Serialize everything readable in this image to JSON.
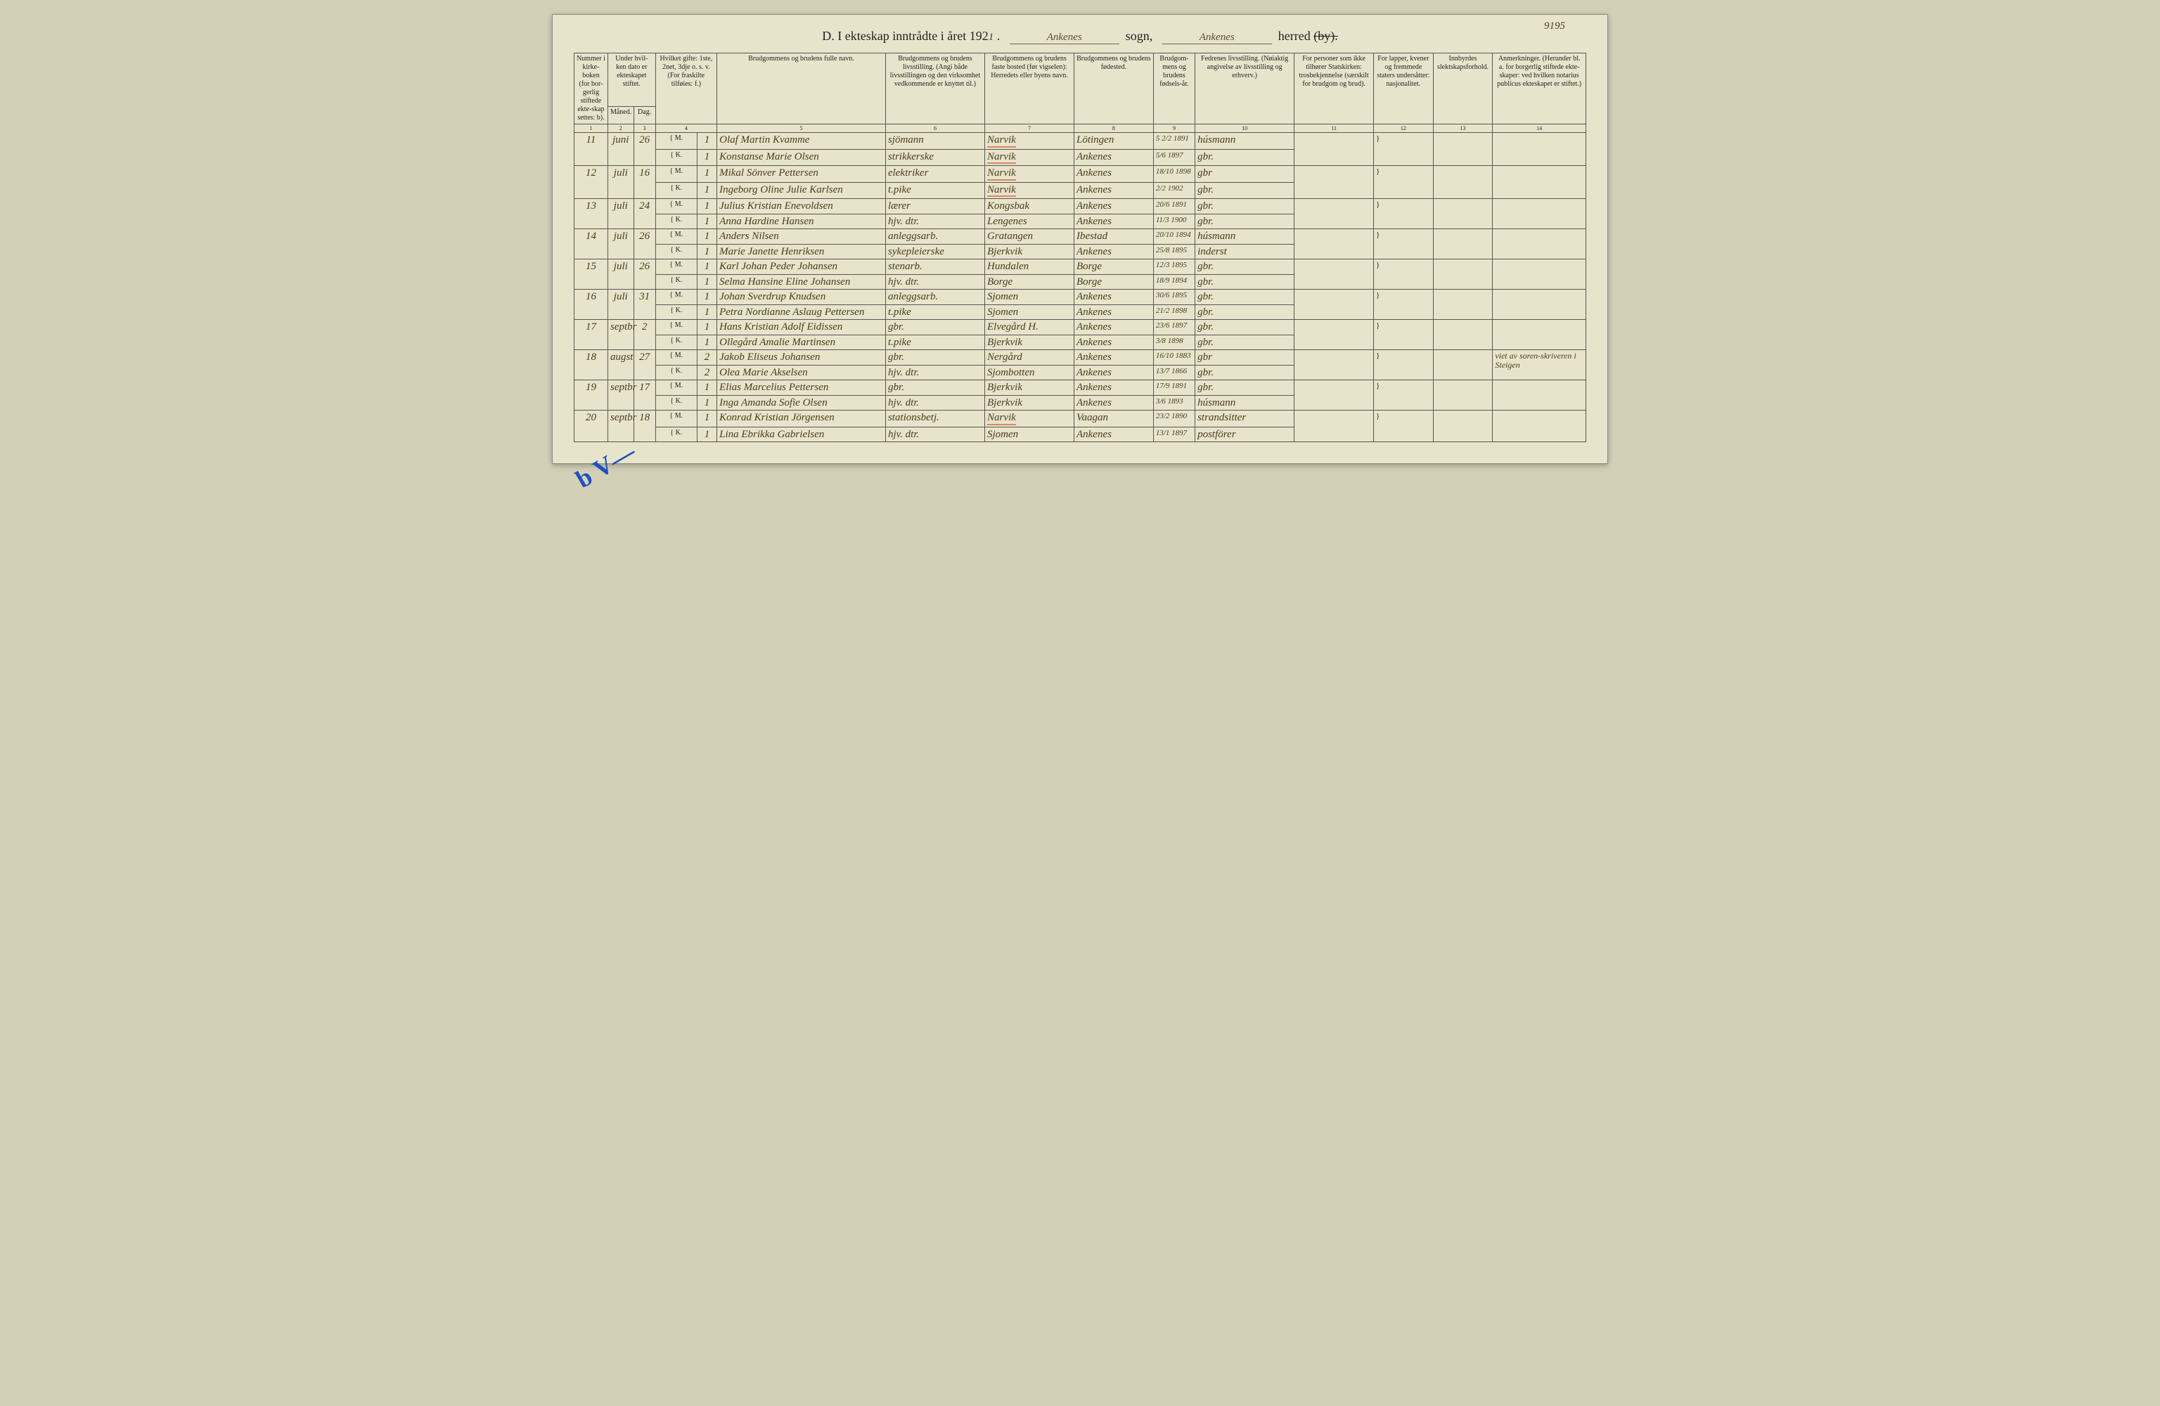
{
  "corner_note": "9195",
  "header": {
    "prefix": "D.   I ekteskap inntrådte i året 192",
    "year_digit": "1",
    "sogn_label": "sogn,",
    "sogn_fill": "Ankenes",
    "herred_label": "herred",
    "herred_fill": "Ankenes",
    "struck": "(by)."
  },
  "columns": [
    {
      "n": "1",
      "label": "Nummer i kirke-boken (for bor-gerlig stiftede ekte-skap settes: b)."
    },
    {
      "n": "2",
      "label": "Under hvil-ken dato er ekteskapet stiftet.",
      "sub": "Måned."
    },
    {
      "n": "3",
      "label": "",
      "sub": "Dag."
    },
    {
      "n": "4",
      "label": "Hvilket gifte: 1ste, 2net, 3dje o. s. v. (For fraskilte tilføies: f.)"
    },
    {
      "n": "5",
      "label": "Brudgommens og brudens fulle navn."
    },
    {
      "n": "6",
      "label": "Brudgommens og brudens livsstilling. (Angi både livsstillingen og den virksomhet vedkommende er knyttet til.)"
    },
    {
      "n": "7",
      "label": "Brudgommens og brudens faste bosted (før vigselen): Herredets eller byens navn."
    },
    {
      "n": "8",
      "label": "Brudgommens og brudens fødested."
    },
    {
      "n": "9",
      "label": "Brudgom-mens og brudens fødsels-år."
    },
    {
      "n": "10",
      "label": "Fedrenes livsstilling. (Nøiaktig angivelse av livsstilling og erhverv.)"
    },
    {
      "n": "11",
      "label": "For personer som ikke tilhører Statskirken: trosbekjennelse (særskilt for brudgom og brud)."
    },
    {
      "n": "12",
      "label": "For lapper, kvener og fremmede staters undersåtter: nasjonalitet."
    },
    {
      "n": "13",
      "label": "Innbyrdes slektskapsforhold."
    },
    {
      "n": "14",
      "label": "Anmerkninger. (Herunder bl. a. for borgerlig stiftede ekte-skaper: ved hvilken notarius publicus ekteskapet er stiftet.)"
    }
  ],
  "mk": {
    "M": "M.",
    "K": "K."
  },
  "entries": [
    {
      "num": "11",
      "month": "juni",
      "day": "26",
      "g": {
        "gifte": "1",
        "name": "Olaf Martin Kvamme",
        "occ": "sjömann",
        "res": "Narvik",
        "res_red": true,
        "birthpl": "Lötingen",
        "birth": "5 2/2 1891",
        "father": "húsmann"
      },
      "b": {
        "gifte": "1",
        "name": "Konstanse Marie Olsen",
        "occ": "strikkerske",
        "res": "Narvik",
        "res_red": true,
        "birthpl": "Ankenes",
        "birth": "5/6 1897",
        "father": "gbr."
      }
    },
    {
      "num": "12",
      "month": "juli",
      "day": "16",
      "g": {
        "gifte": "1",
        "name": "Mikal Sönver Pettersen",
        "occ": "elektriker",
        "res": "Narvik",
        "res_red": true,
        "birthpl": "Ankenes",
        "birth": "18/10 1898",
        "father": "gbr"
      },
      "b": {
        "gifte": "1",
        "name": "Ingeborg Oline Julie Karlsen",
        "occ": "t.pike",
        "res": "Narvik",
        "res_red": true,
        "birthpl": "Ankenes",
        "birth": "2/2 1902",
        "father": "gbr."
      }
    },
    {
      "num": "13",
      "month": "juli",
      "day": "24",
      "g": {
        "gifte": "1",
        "name": "Julius Kristian Enevoldsen",
        "occ": "lærer",
        "res": "Kongsbak",
        "birthpl": "Ankenes",
        "birth": "20/6 1891",
        "father": "gbr."
      },
      "b": {
        "gifte": "1",
        "name": "Anna Hardine Hansen",
        "occ": "hjv. dtr.",
        "res": "Lengenes",
        "birthpl": "Ankenes",
        "birth": "11/3 1900",
        "father": "gbr."
      }
    },
    {
      "num": "14",
      "month": "juli",
      "day": "26",
      "g": {
        "gifte": "1",
        "name": "Anders Nilsen",
        "occ": "anleggsarb.",
        "res": "Gratangen",
        "birthpl": "Ibestad",
        "birth": "20/10 1894",
        "father": "húsmann"
      },
      "b": {
        "gifte": "1",
        "name": "Marie Janette Henriksen",
        "occ": "sykepleierske",
        "res": "Bjerkvik",
        "birthpl": "Ankenes",
        "birth": "25/8 1895",
        "father": "inderst"
      }
    },
    {
      "num": "15",
      "month": "juli",
      "day": "26",
      "g": {
        "gifte": "1",
        "name": "Karl Johan Peder Johansen",
        "occ": "stenarb.",
        "res": "Hundalen",
        "birthpl": "Borge",
        "birth": "12/3 1895",
        "father": "gbr."
      },
      "b": {
        "gifte": "1",
        "name": "Selma Hansine Eline Johansen",
        "occ": "hjv. dtr.",
        "res": "Borge",
        "birthpl": "Borge",
        "birth": "18/9 1894",
        "father": "gbr."
      }
    },
    {
      "num": "16",
      "month": "juli",
      "day": "31",
      "g": {
        "gifte": "1",
        "name": "Johan Sverdrup Knudsen",
        "occ": "anleggsarb.",
        "res": "Sjomen",
        "birthpl": "Ankenes",
        "birth": "30/6 1895",
        "father": "gbr."
      },
      "b": {
        "gifte": "1",
        "name": "Petra Nordianne Aslaug Pettersen",
        "occ": "t.pike",
        "res": "Sjomen",
        "birthpl": "Ankenes",
        "birth": "21/2 1898",
        "father": "gbr."
      }
    },
    {
      "num": "17",
      "month": "septbr",
      "day": "2",
      "g": {
        "gifte": "1",
        "name": "Hans Kristian Adolf Eidissen",
        "occ": "gbr.",
        "res": "Elvegård H.",
        "birthpl": "Ankenes",
        "birth": "23/6 1897",
        "father": "gbr."
      },
      "b": {
        "gifte": "1",
        "name": "Ollegård Amalie Martinsen",
        "occ": "t.pike",
        "res": "Bjerkvik",
        "birthpl": "Ankenes",
        "birth": "3/8 1898",
        "father": "gbr."
      }
    },
    {
      "num": "18",
      "month": "augst",
      "day": "27",
      "g": {
        "gifte": "2",
        "name": "Jakob Eliseus Johansen",
        "occ": "gbr.",
        "res": "Nergård",
        "birthpl": "Ankenes",
        "birth": "16/10 1883",
        "father": "gbr"
      },
      "b": {
        "gifte": "2",
        "name": "Olea Marie Akselsen",
        "occ": "hjv. dtr.",
        "res": "Sjombotten",
        "birthpl": "Ankenes",
        "birth": "13/7 1866",
        "father": "gbr."
      },
      "remark": "viet av soren-skriveren i Steigen"
    },
    {
      "num": "19",
      "month": "septbr",
      "day": "17",
      "g": {
        "gifte": "1",
        "name": "Elias Marcelius Pettersen",
        "occ": "gbr.",
        "res": "Bjerkvik",
        "birthpl": "Ankenes",
        "birth": "17/9 1891",
        "father": "gbr."
      },
      "b": {
        "gifte": "1",
        "name": "Inga Amanda Sofie Olsen",
        "occ": "hjv. dtr.",
        "res": "Bjerkvik",
        "birthpl": "Ankenes",
        "birth": "3/6 1893",
        "father": "húsmann"
      }
    },
    {
      "num": "20",
      "month": "septbr",
      "day": "18",
      "g": {
        "gifte": "1",
        "name": "Konrad Kristian Jörgensen",
        "occ": "stationsbetj.",
        "res": "Narvik",
        "res_red": true,
        "birthpl": "Vaagan",
        "birth": "23/2 1890",
        "father": "strandsitter"
      },
      "b": {
        "gifte": "1",
        "name": "Lina Ebrikka Gabrielsen",
        "occ": "hjv. dtr.",
        "res": "Sjomen",
        "birthpl": "Ankenes",
        "birth": "13/1 1897",
        "father": "postförer"
      }
    }
  ],
  "blue_mark": "b V—"
}
